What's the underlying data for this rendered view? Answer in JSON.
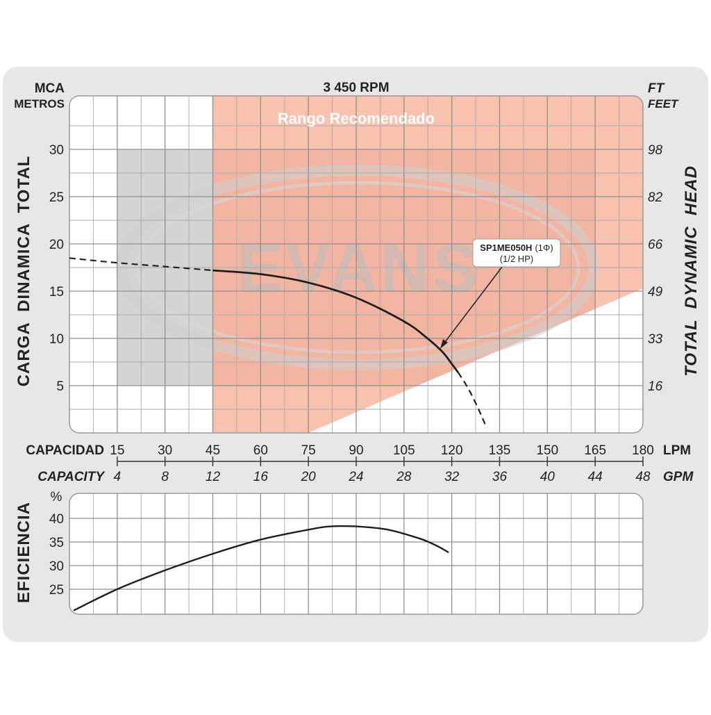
{
  "chart_data": [
    {
      "type": "line",
      "title": "3 450 RPM",
      "overlay_text": "Rango Recomendado",
      "watermark": "EVANS",
      "left_unit": "MCA",
      "left_unit_sub": "METROS",
      "right_unit": "FT",
      "right_unit_sub": "FEET",
      "ylabel": "CARGA  DINAMICA  TOTAL",
      "ylabel_right": "TOTAL  DYNAMIC  HEAD",
      "ylim": [
        0,
        35
      ],
      "y_ticks": [
        "5",
        "10",
        "15",
        "20",
        "25",
        "30"
      ],
      "y_ticks_right": [
        "16",
        "33",
        "49",
        "66",
        "82",
        "98"
      ],
      "x_label_lpm": "CAPACIDAD",
      "x_unit_lpm": "LPM",
      "x_label_gpm": "CAPACITY",
      "x_unit_gpm": "GPM",
      "xlim": [
        0,
        180
      ],
      "x_ticks_lpm": [
        "15",
        "30",
        "45",
        "60",
        "75",
        "90",
        "105",
        "120",
        "135",
        "150",
        "165",
        "180"
      ],
      "x_ticks_gpm": [
        "4",
        "8",
        "12",
        "16",
        "20",
        "24",
        "28",
        "32",
        "36",
        "40",
        "44",
        "48"
      ],
      "recommended_range_lpm": [
        45,
        165
      ],
      "model_label": "SP1ME050H",
      "model_phase": "(1Φ)",
      "model_power": "(1/2 HP)",
      "series": [
        {
          "name": "SP1ME050H",
          "dashed_start": {
            "x": [
              0,
              15,
              30,
              45
            ],
            "y": [
              18.5,
              18.0,
              17.6,
              17.2
            ]
          },
          "solid": {
            "x": [
              45,
              60,
              75,
              90,
              105,
              112,
              117,
              120,
              122
            ],
            "y": [
              17.2,
              16.8,
              15.9,
              14.3,
              11.8,
              10.1,
              8.6,
              7.3,
              6.4
            ]
          },
          "dashed_end": {
            "x": [
              122,
              125,
              128,
              131
            ],
            "y": [
              6.4,
              4.8,
              2.8,
              0.5
            ]
          }
        }
      ]
    },
    {
      "type": "line",
      "ylabel": "EFICIENCIA",
      "unit": "%",
      "ylim": [
        20,
        44
      ],
      "y_ticks": [
        "25",
        "30",
        "35",
        "40"
      ],
      "xlim": [
        0,
        180
      ],
      "series": [
        {
          "name": "SP1ME050H",
          "x": [
            0,
            15,
            30,
            45,
            60,
            75,
            82,
            90,
            100,
            110,
            115,
            119
          ],
          "y": [
            20.5,
            25.0,
            29.0,
            32.5,
            35.5,
            37.6,
            38.3,
            38.3,
            37.6,
            35.7,
            34.3,
            32.8
          ]
        }
      ]
    }
  ]
}
